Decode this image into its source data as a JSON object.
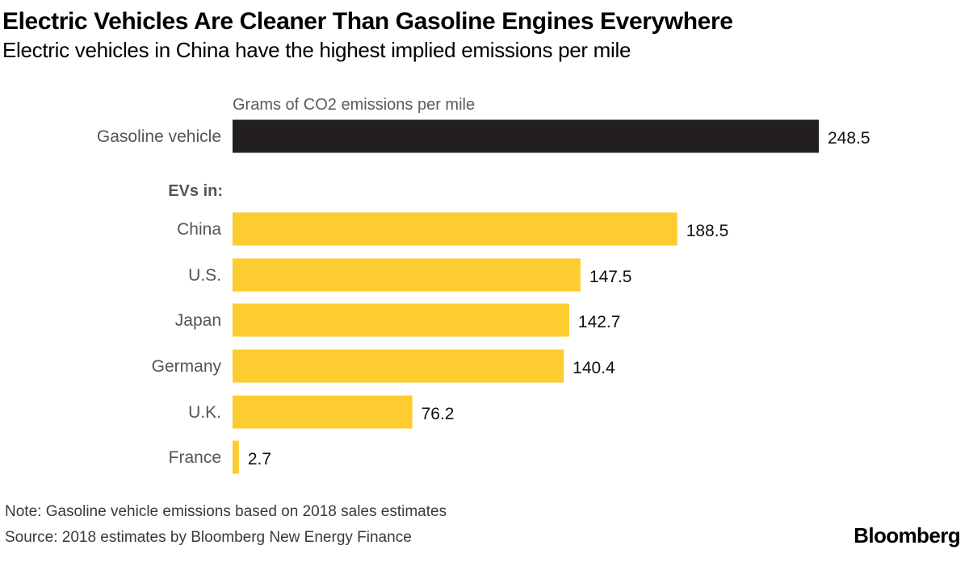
{
  "header": {
    "title": "Electric Vehicles Are Cleaner Than Gasoline Engines Everywhere",
    "subtitle": "Electric vehicles in China have the highest implied emissions per mile"
  },
  "chart_data": {
    "type": "bar",
    "orientation": "horizontal",
    "axis_label": "Grams of CO2 emissions per mile",
    "group_label": "EVs in:",
    "categories": [
      "Gasoline vehicle",
      "China",
      "U.S.",
      "Japan",
      "Germany",
      "U.K.",
      "France"
    ],
    "values": [
      248.5,
      188.5,
      147.5,
      142.7,
      140.4,
      76.2,
      2.7
    ],
    "value_labels": [
      "248.5",
      "188.5",
      "147.5",
      "142.7",
      "140.4",
      "76.2",
      "2.7"
    ],
    "colors": [
      "#231f20",
      "#fdcc30",
      "#fdcc30",
      "#fdcc30",
      "#fdcc30",
      "#fdcc30",
      "#fdcc30"
    ],
    "xlim": [
      0,
      248.5
    ]
  },
  "footer": {
    "note": "Note: Gasoline vehicle emissions based on 2018 sales estimates",
    "source": "Source: 2018 estimates by Bloomberg New Energy Finance",
    "brand": "Bloomberg"
  }
}
